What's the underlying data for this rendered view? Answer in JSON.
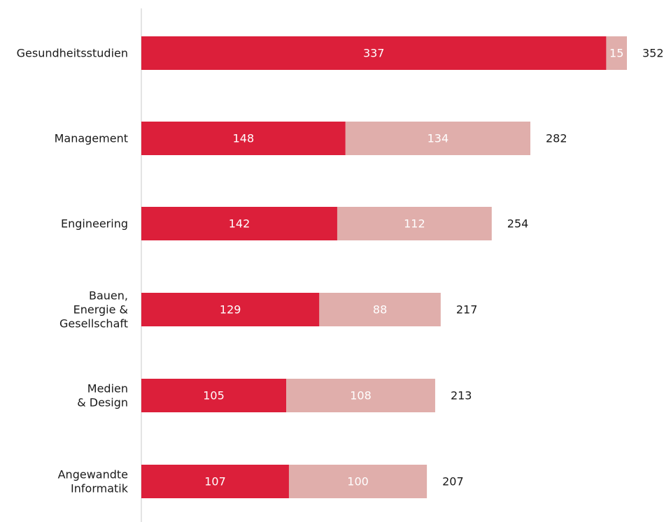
{
  "chart_data": {
    "type": "bar",
    "orientation": "horizontal",
    "stacked": true,
    "categories": [
      [
        "Gesundheitsstudien"
      ],
      [
        "Management"
      ],
      [
        "Engineering"
      ],
      [
        "Bauen,",
        "Energie &",
        "Gesellschaft"
      ],
      [
        "Medien",
        "& Design"
      ],
      [
        "Angewandte",
        "Informatik"
      ]
    ],
    "series": [
      {
        "values": [
          337,
          148,
          142,
          129,
          105,
          107
        ],
        "color": "#dc1f3a"
      },
      {
        "values": [
          15,
          134,
          112,
          88,
          108,
          100
        ],
        "color": "#e0aeab"
      }
    ],
    "totals": [
      352,
      282,
      254,
      217,
      213,
      207
    ],
    "xlim": [
      0,
      352
    ],
    "grid": false,
    "legend": "none"
  }
}
